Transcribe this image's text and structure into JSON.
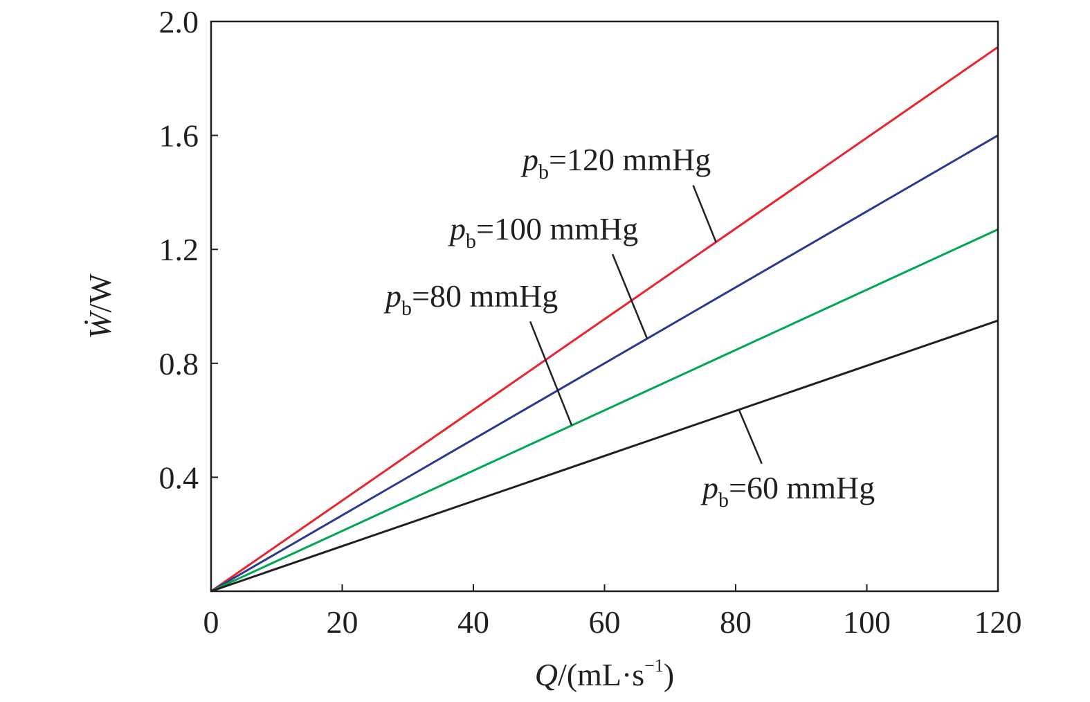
{
  "chart_data": {
    "type": "line",
    "title": "",
    "xlabel": {
      "var": "Q",
      "unit": "/(mL·s",
      "exp": "−1",
      "close": ")"
    },
    "ylabel": {
      "var": "Ẇ",
      "unit": "/W"
    },
    "xlim": [
      0,
      120
    ],
    "ylim": [
      0,
      2.0
    ],
    "x_ticks": [
      0,
      20,
      40,
      60,
      80,
      100,
      120
    ],
    "y_ticks": [
      0.4,
      0.8,
      1.2,
      1.6,
      2.0
    ],
    "x_tick_labels": [
      "0",
      "20",
      "40",
      "60",
      "80",
      "100",
      "120"
    ],
    "y_tick_labels": [
      "0.4",
      "0.8",
      "1.2",
      "1.6",
      "2.0"
    ],
    "grid": false,
    "legend": "none",
    "series": [
      {
        "label": {
          "var": "p",
          "sub": "b",
          "text": "=120 mmHg"
        },
        "color": "#e8242d",
        "x": [
          0,
          120
        ],
        "y": [
          0,
          1.91
        ],
        "leader_at_x": 77
      },
      {
        "label": {
          "var": "p",
          "sub": "b",
          "text": "=100 mmHg"
        },
        "color": "#2b3990",
        "x": [
          0,
          120
        ],
        "y": [
          0,
          1.6
        ],
        "leader_at_x": 66.5
      },
      {
        "label": {
          "var": "p",
          "sub": "b",
          "text": "=80 mmHg"
        },
        "color": "#00a651",
        "x": [
          0,
          120
        ],
        "y": [
          0,
          1.27
        ],
        "leader_at_x": 55
      },
      {
        "label": {
          "var": "p",
          "sub": "b",
          "text": "=60 mmHg"
        },
        "color": "#231f20",
        "x": [
          0,
          120
        ],
        "y": [
          0,
          0.95
        ],
        "leader_at_x": 80.5
      }
    ]
  }
}
